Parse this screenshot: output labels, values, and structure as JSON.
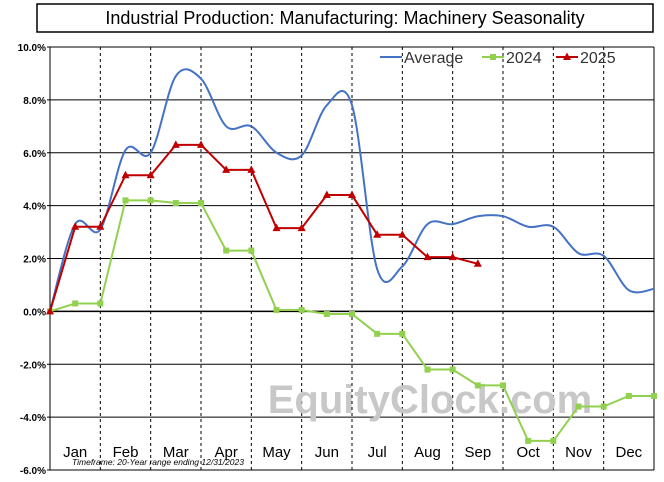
{
  "chart_data": {
    "type": "line",
    "title": "Industrial Production: Manufacturing: Machinery Seasonality",
    "footnote": "Timeframe: 20-Year range ending 12/31/2023",
    "watermark": "EquityClock.com",
    "y_ticks": [
      "10.0%",
      "8.0%",
      "6.0%",
      "4.0%",
      "2.0%",
      "0.0%",
      "-2.0%",
      "-4.0%",
      "-6.0%"
    ],
    "ylim": [
      -6,
      10
    ],
    "ytick_values": [
      10,
      8,
      6,
      4,
      2,
      0,
      -2,
      -4,
      -6
    ],
    "months": [
      "Jan",
      "Feb",
      "Mar",
      "Apr",
      "May",
      "Jun",
      "Jul",
      "Aug",
      "Sep",
      "Oct",
      "Nov",
      "Dec"
    ],
    "xlim": [
      0,
      12
    ],
    "legend_position": "top-right",
    "series": [
      {
        "name": "Average",
        "color": "#4472c4",
        "marker": "none",
        "smooth": true,
        "x": [
          0,
          0.5,
          1,
          1.5,
          2,
          2.5,
          3,
          3.5,
          4,
          4.5,
          5,
          5.5,
          6,
          6.5,
          7,
          7.5,
          8,
          8.5,
          9,
          9.5,
          10,
          10.5,
          11,
          11.5,
          12
        ],
        "y": [
          0,
          3.3,
          3.1,
          6.1,
          6.0,
          8.9,
          8.8,
          7.0,
          7.0,
          6.0,
          5.9,
          7.8,
          7.8,
          1.6,
          1.7,
          3.3,
          3.3,
          3.6,
          3.6,
          3.2,
          3.2,
          2.2,
          2.1,
          0.8,
          0.85
        ]
      },
      {
        "name": "2024",
        "color": "#92d050",
        "marker": "square",
        "smooth": false,
        "x": [
          0,
          0.5,
          1,
          1.5,
          2,
          2.5,
          3,
          3.5,
          4,
          4.5,
          5,
          5.5,
          6,
          6.5,
          7,
          7.5,
          8,
          8.5,
          9,
          9.5,
          10,
          10.5,
          11,
          11.5,
          12
        ],
        "y": [
          0,
          0.3,
          0.3,
          4.2,
          4.2,
          4.1,
          4.1,
          2.3,
          2.3,
          0.05,
          0.05,
          -0.1,
          -0.1,
          -0.85,
          -0.85,
          -2.2,
          -2.2,
          -2.8,
          -2.8,
          -4.9,
          -4.9,
          -3.6,
          -3.6,
          -3.2,
          -3.2
        ]
      },
      {
        "name": "2025",
        "color": "#c00000",
        "marker": "triangle",
        "smooth": false,
        "x": [
          0,
          0.5,
          1,
          1.5,
          2,
          2.5,
          3,
          3.5,
          4,
          4.5,
          5,
          5.5,
          6,
          6.5,
          7,
          7.5,
          8,
          8.5
        ],
        "y": [
          0,
          3.2,
          3.2,
          5.15,
          5.15,
          6.3,
          6.3,
          5.35,
          5.35,
          3.15,
          3.15,
          4.4,
          4.4,
          2.9,
          2.9,
          2.05,
          2.05,
          1.8
        ]
      }
    ]
  }
}
